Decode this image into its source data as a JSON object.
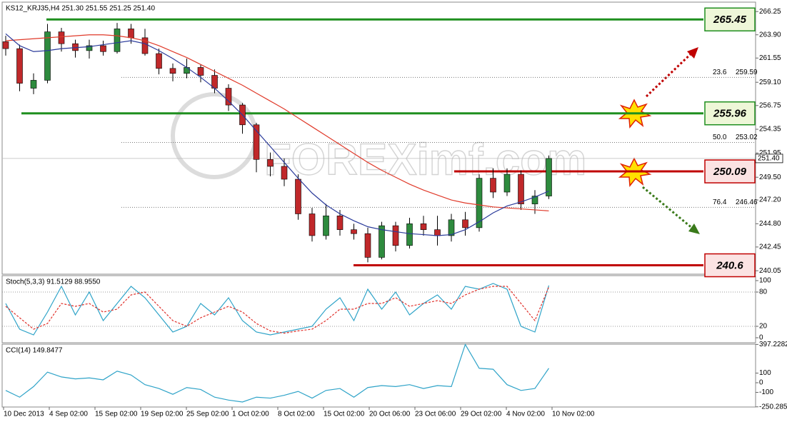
{
  "chart_data": [
    {
      "type": "candlestick",
      "title": "KS12_KRJ35,H4 251.30 251.55 251.25 251.40",
      "watermark": "FOREXimf.com",
      "ylim": [
        239.7,
        267.2
      ],
      "yticks": [
        266.25,
        {
          "value": 263.9,
          "label": "263.90"
        },
        261.55,
        {
          "value": 259.1,
          "label": "259.10"
        },
        256.75,
        254.35,
        251.95,
        {
          "value": 249.5,
          "label": "249.50"
        },
        {
          "value": 247.2,
          "label": "247.20"
        },
        {
          "value": 244.8,
          "label": "244.80"
        },
        242.45,
        240.05
      ],
      "xlabels": [
        "10 Dec 2013",
        "4 Sep 02:00",
        "15 Sep 02:00",
        "19 Sep 02:00",
        "25 Sep 02:00",
        "1 Oct 02:00",
        "8 Oct 02:00",
        "15 Oct 02:00",
        "20 Oct 06:00",
        "23 Oct 06:00",
        "29 Oct 02:00",
        "4 Nov 02:00",
        "10 Nov 02:00"
      ],
      "up_color": "#2e8b3e",
      "down_color": "#c0282a",
      "candles": [
        [
          263.2,
          263.8,
          261.8,
          262.5
        ],
        [
          262.5,
          262.9,
          258.2,
          259.0
        ],
        [
          258.5,
          260.0,
          257.9,
          259.3
        ],
        [
          259.3,
          265.0,
          259.0,
          264.2
        ],
        [
          264.2,
          264.6,
          262.2,
          263.0
        ],
        [
          263.0,
          263.4,
          261.6,
          262.3
        ],
        [
          262.3,
          263.4,
          261.5,
          262.8
        ],
        [
          262.8,
          263.3,
          261.8,
          262.2
        ],
        [
          262.2,
          265.1,
          262.0,
          264.5
        ],
        [
          264.5,
          265.0,
          263.0,
          263.6
        ],
        [
          263.6,
          264.5,
          261.8,
          262.0
        ],
        [
          262.0,
          262.5,
          259.9,
          260.5
        ],
        [
          260.5,
          261.0,
          259.2,
          260.0
        ],
        [
          260.0,
          261.5,
          259.5,
          260.6
        ],
        [
          260.6,
          260.9,
          259.1,
          259.8
        ],
        [
          259.8,
          260.4,
          258.0,
          258.5
        ],
        [
          258.5,
          258.9,
          256.2,
          256.8
        ],
        [
          256.8,
          257.0,
          253.9,
          254.8
        ],
        [
          254.8,
          255.0,
          250.0,
          251.3
        ],
        [
          251.3,
          252.0,
          249.6,
          250.6
        ],
        [
          250.6,
          251.4,
          248.6,
          249.3
        ],
        [
          249.3,
          249.8,
          245.2,
          245.8
        ],
        [
          245.8,
          246.4,
          243.0,
          243.6
        ],
        [
          243.6,
          246.8,
          243.2,
          245.6
        ],
        [
          245.6,
          246.2,
          243.6,
          244.2
        ],
        [
          244.2,
          244.8,
          243.2,
          243.8
        ],
        [
          243.8,
          244.4,
          240.9,
          241.4
        ],
        [
          241.4,
          245.0,
          241.2,
          244.6
        ],
        [
          244.6,
          245.0,
          242.0,
          242.6
        ],
        [
          242.6,
          245.4,
          242.3,
          244.8
        ],
        [
          244.8,
          245.6,
          243.6,
          244.2
        ],
        [
          244.2,
          245.6,
          242.6,
          243.6
        ],
        [
          243.6,
          245.8,
          243.0,
          245.2
        ],
        [
          245.2,
          246.0,
          243.6,
          244.4
        ],
        [
          244.4,
          249.8,
          244.0,
          249.4
        ],
        [
          249.4,
          250.4,
          247.4,
          248.0
        ],
        [
          248.0,
          250.4,
          247.6,
          249.8
        ],
        [
          249.8,
          250.2,
          246.2,
          246.8
        ],
        [
          246.8,
          248.2,
          245.8,
          247.6
        ],
        [
          247.6,
          251.7,
          247.3,
          251.4
        ]
      ],
      "series": [
        {
          "color": "#e03a2a",
          "values": [
            263.3,
            263.4,
            263.5,
            263.6,
            263.7,
            263.8,
            263.9,
            263.9,
            263.8,
            263.6,
            263.3,
            262.8,
            262.2,
            261.6,
            260.9,
            260.2,
            259.5,
            258.8,
            258.0,
            257.2,
            256.4,
            255.5,
            254.6,
            253.7,
            252.8,
            251.9,
            251.0,
            250.2,
            249.5,
            248.8,
            248.2,
            247.7,
            247.2,
            246.9,
            246.7,
            246.5,
            246.4,
            246.3,
            246.2,
            246.1
          ]
        },
        {
          "color": "#2a3a9a",
          "values": [
            264.0,
            262.8,
            262.2,
            262.3,
            262.5,
            262.6,
            262.7,
            262.9,
            263.1,
            263.3,
            263.0,
            262.3,
            261.5,
            260.6,
            259.6,
            258.5,
            257.2,
            255.8,
            254.2,
            252.6,
            251.0,
            249.4,
            247.9,
            246.7,
            245.8,
            245.1,
            244.5,
            244.2,
            244.0,
            243.8,
            243.7,
            243.6,
            243.7,
            244.2,
            245.0,
            245.9,
            246.6,
            247.0,
            247.5,
            248.1
          ]
        }
      ],
      "levels": [
        {
          "value": 265.45,
          "color": "#1f8f1f"
        },
        {
          "value": 255.96,
          "color": "#1f8f1f"
        },
        {
          "value": 250.09,
          "color": "#c00000"
        },
        {
          "value": 240.6,
          "color": "#c00000"
        }
      ],
      "fibs": [
        {
          "ratio": "23.6",
          "value": 259.59
        },
        {
          "ratio": "50.0",
          "value": 253.02
        },
        {
          "ratio": "76.4",
          "value": 246.46
        }
      ],
      "last": {
        "value": 251.4,
        "label": "251.40"
      }
    },
    {
      "type": "line",
      "title": "Stoch(5,3,3) 91.5129 88.9550",
      "ylim": [
        -8.75,
        108.75
      ],
      "yticks": [
        100,
        80,
        20,
        0
      ],
      "levels": [
        80,
        20
      ],
      "series": [
        {
          "color": "#2ea3c8",
          "dash": false,
          "values": [
            60,
            15,
            5,
            45,
            90,
            40,
            80,
            30,
            60,
            90,
            70,
            40,
            10,
            20,
            60,
            40,
            70,
            30,
            10,
            5,
            10,
            15,
            20,
            50,
            70,
            30,
            85,
            50,
            80,
            40,
            60,
            75,
            50,
            90,
            85,
            95,
            85,
            20,
            10,
            91.5129
          ]
        },
        {
          "color": "#e0302a",
          "dash": true,
          "values": [
            55,
            35,
            15,
            25,
            60,
            55,
            60,
            45,
            50,
            75,
            80,
            55,
            30,
            20,
            35,
            45,
            55,
            45,
            25,
            12,
            8,
            12,
            15,
            30,
            50,
            50,
            60,
            60,
            70,
            55,
            60,
            65,
            60,
            75,
            85,
            90,
            90,
            60,
            30,
            88.955
          ]
        }
      ]
    },
    {
      "type": "line",
      "title": "CCI(14) 149.8477",
      "ylim": [
        -252,
        400
      ],
      "yticks": [
        397.2282,
        100,
        0,
        -100,
        -250.2851
      ],
      "series": [
        {
          "color": "#2ea3c8",
          "dash": false,
          "values": [
            -80,
            -150,
            -40,
            110,
            60,
            40,
            50,
            30,
            120,
            80,
            -20,
            -60,
            -120,
            -50,
            -70,
            -150,
            -180,
            -200,
            -150,
            -160,
            -130,
            -90,
            -160,
            -80,
            -60,
            -150,
            -50,
            -30,
            -40,
            -20,
            -60,
            -30,
            -40,
            397,
            150,
            140,
            -20,
            -80,
            -60,
            149.8477
          ]
        }
      ]
    }
  ]
}
